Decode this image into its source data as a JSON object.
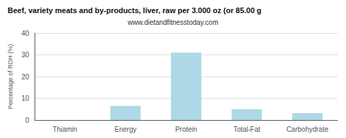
{
  "chart_data": {
    "type": "bar",
    "title": "Beef, variety meats and by-products, liver, raw per 3.000 oz (or 85.00 g",
    "subtitle": "www.dietandfitnesstoday.com",
    "categories": [
      "Thiamin",
      "Energy",
      "Protein",
      "Total-Fat",
      "Carbohydrate"
    ],
    "values": [
      0.0,
      6.5,
      31.0,
      5.0,
      3.2
    ],
    "color": "#add8e6",
    "ylabel": "Percentage of RDH (%)",
    "ylim": [
      0,
      40
    ],
    "yticks": [
      0,
      10,
      20,
      30,
      40
    ],
    "grid": true
  }
}
